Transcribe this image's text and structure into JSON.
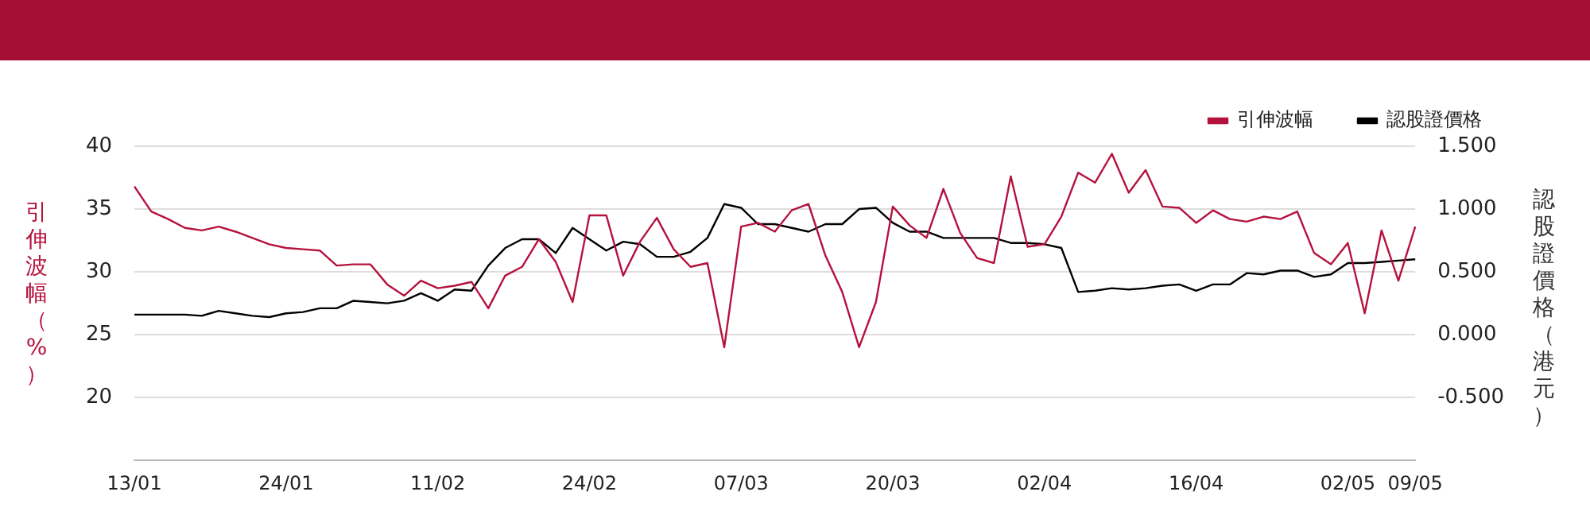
{
  "chart_data": {
    "type": "line",
    "ylabel": "引伸波幅（%）",
    "y2label": "認股證價格（港元）",
    "categories": [
      "13/01",
      null,
      null,
      null,
      null,
      null,
      null,
      null,
      null,
      "24/01",
      null,
      null,
      null,
      null,
      null,
      null,
      null,
      null,
      "11/02",
      null,
      null,
      null,
      null,
      null,
      null,
      null,
      null,
      "24/02",
      null,
      null,
      null,
      null,
      null,
      null,
      null,
      null,
      "07/03",
      null,
      null,
      null,
      null,
      null,
      null,
      null,
      null,
      "20/03",
      null,
      null,
      null,
      null,
      null,
      null,
      null,
      null,
      "02/04",
      null,
      null,
      null,
      null,
      null,
      null,
      null,
      null,
      "16/04",
      null,
      null,
      null,
      null,
      null,
      null,
      null,
      null,
      "02/05",
      null,
      null,
      null,
      "09/05"
    ],
    "series": [
      {
        "name": "引伸波幅",
        "color": "#b5123e",
        "values": [
          36.8,
          34.8,
          34.2,
          33.5,
          33.3,
          33.6,
          33.2,
          32.7,
          32.2,
          31.9,
          31.8,
          31.7,
          30.5,
          30.6,
          30.6,
          29.0,
          28.1,
          29.3,
          28.7,
          28.9,
          29.2,
          27.1,
          29.7,
          30.4,
          32.6,
          30.8,
          27.6,
          34.5,
          34.5,
          29.7,
          32.4,
          34.3,
          31.8,
          30.4,
          30.7,
          24.0,
          33.6,
          33.9,
          33.2,
          34.9,
          35.4,
          31.3,
          28.4,
          24.0,
          27.6,
          35.2,
          33.7,
          32.7,
          36.6,
          33.1,
          31.1,
          30.7,
          37.6,
          32.0,
          32.2,
          34.4,
          37.9,
          37.1,
          39.4,
          36.3,
          38.1,
          35.2,
          35.1,
          33.9,
          34.9,
          34.2,
          34.0,
          34.4,
          34.2,
          34.8,
          31.5,
          30.6,
          32.3,
          26.7,
          33.3,
          29.3,
          33.6
        ]
      },
      {
        "name": "認股證價格",
        "color": "#000000",
        "axis": "y2",
        "values": [
          0.16,
          0.16,
          0.16,
          0.16,
          0.15,
          0.19,
          0.17,
          0.15,
          0.14,
          0.17,
          0.18,
          0.21,
          0.21,
          0.27,
          0.26,
          0.25,
          0.27,
          0.33,
          0.27,
          0.36,
          0.35,
          0.55,
          0.69,
          0.76,
          0.76,
          0.65,
          0.85,
          0.76,
          0.67,
          0.74,
          0.72,
          0.62,
          0.62,
          0.66,
          0.77,
          1.04,
          1.01,
          0.88,
          0.88,
          0.85,
          0.82,
          0.88,
          0.88,
          1.0,
          1.01,
          0.89,
          0.82,
          0.82,
          0.77,
          0.77,
          0.77,
          0.77,
          0.73,
          0.73,
          0.72,
          0.69,
          0.34,
          0.35,
          0.37,
          0.36,
          0.37,
          0.39,
          0.4,
          0.35,
          0.4,
          0.4,
          0.49,
          0.48,
          0.51,
          0.51,
          0.46,
          0.48,
          0.57,
          0.57,
          0.58,
          0.59,
          0.6
        ]
      }
    ],
    "ylim": [
      15,
      40
    ],
    "yticks": [
      20,
      25,
      30,
      35,
      40
    ],
    "y2lim": [
      -1,
      1.5
    ],
    "y2ticks": [
      {
        "value": -0.5,
        "label": "-0.500"
      },
      {
        "value": 0,
        "label": "0.000"
      },
      {
        "value": 0.5,
        "label": "0.500"
      },
      {
        "value": 1,
        "label": "1.000"
      },
      {
        "value": 1.5,
        "label": "1.500"
      }
    ],
    "grid": "y",
    "legend": "top right",
    "marker": "none",
    "line_style": "solid"
  }
}
